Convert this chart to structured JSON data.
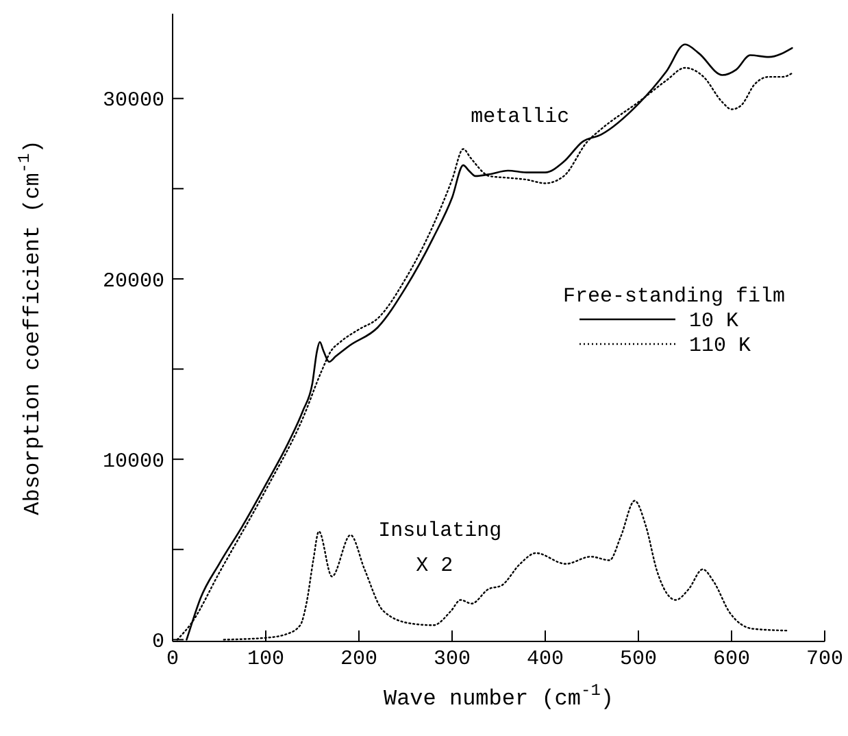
{
  "chart_data": {
    "type": "line",
    "xlabel": "Wave number (cm$^{-1}$)",
    "ylabel": "Absorption coefficient (cm$^{-1}$)",
    "legend_title": "Free-standing film",
    "legend": "right",
    "marker": "none",
    "annotations": [
      "metallic",
      "Insulating",
      "X 2"
    ],
    "xlim": [
      0,
      700
    ],
    "xticks": [
      0,
      100,
      200,
      300,
      400,
      500,
      600,
      700
    ],
    "ylim": [
      -100,
      34700
    ],
    "yticks": [
      0,
      {
        "value": 5000,
        "label": null
      },
      10000,
      {
        "value": 15000,
        "label": null
      },
      20000,
      {
        "value": 25000,
        "label": null
      },
      30000
    ],
    "series": [
      {
        "name": "10 K",
        "color": "#000000",
        "line_style": "solid",
        "x": [
          15,
          20,
          30,
          50,
          75,
          100,
          125,
          140,
          150,
          155,
          158,
          162,
          168,
          175,
          190,
          220,
          250,
          280,
          300,
          312,
          318,
          325,
          340,
          360,
          380,
          400,
          420,
          440,
          460,
          500,
          530,
          550,
          565,
          590,
          605,
          620,
          640,
          665
        ],
        "values": [
          0,
          800,
          2300,
          4200,
          6300,
          8600,
          11000,
          12700,
          14200,
          16000,
          16500,
          16000,
          15400,
          15700,
          16300,
          17300,
          19500,
          22300,
          24500,
          26300,
          26000,
          25700,
          25800,
          26000,
          25900,
          25900,
          26500,
          27600,
          28000,
          29700,
          31500,
          33000,
          32500,
          31300,
          31600,
          32400,
          32300,
          32800
        ]
      },
      {
        "name": "110 K",
        "color": "#000000",
        "line_style": "dotted",
        "x": [
          5,
          20,
          50,
          100,
          140,
          160,
          170,
          180,
          200,
          220,
          250,
          280,
          300,
          312,
          320,
          340,
          360,
          380,
          400,
          420,
          445,
          460,
          500,
          530,
          550,
          570,
          590,
          600,
          610,
          625,
          640,
          655,
          665
        ],
        "values": [
          0,
          900,
          3700,
          8300,
          12300,
          14900,
          16000,
          16500,
          17200,
          17800,
          20000,
          23000,
          25500,
          27200,
          26700,
          25700,
          25600,
          25500,
          25300,
          25700,
          27600,
          28300,
          29800,
          31000,
          31700,
          31200,
          29800,
          29400,
          29600,
          30800,
          31200,
          31200,
          31400
        ]
      },
      {
        "color": "#000000",
        "line_style": "dotted",
        "x": [
          55,
          100,
          122,
          137,
          144,
          151,
          157,
          171,
          191,
          206,
          226,
          255,
          280,
          299,
          309,
          321,
          339,
          353,
          373,
          390,
          422,
          449,
          469,
          481,
          496,
          508,
          520,
          540,
          554,
          569,
          581,
          598,
          623,
          660
        ],
        "values": [
          0,
          100,
          300,
          800,
          2100,
          4400,
          6000,
          3500,
          5800,
          3900,
          1600,
          900,
          800,
          1600,
          2200,
          2000,
          2800,
          3000,
          4200,
          4800,
          4200,
          4600,
          4400,
          5700,
          7700,
          6300,
          3800,
          2200,
          2800,
          3900,
          3200,
          1500,
          600,
          500
        ]
      }
    ]
  }
}
